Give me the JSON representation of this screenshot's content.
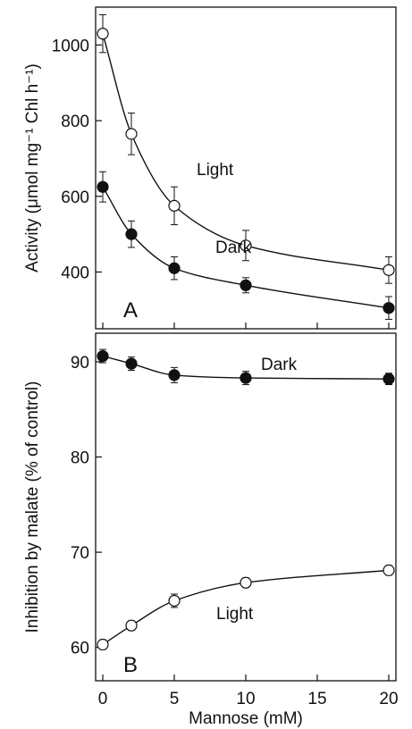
{
  "chart_data": [
    {
      "type": "line",
      "panel_label": "A",
      "ylabel": "Activity (μmol mg⁻¹ Chl h⁻¹)",
      "xlim": [
        -0.5,
        20.5
      ],
      "ylim": [
        250,
        1100
      ],
      "yticks": [
        400,
        600,
        800,
        1000
      ],
      "series": [
        {
          "name": "Light",
          "marker": "open-circle",
          "x": [
            0,
            2,
            5,
            10,
            20
          ],
          "y": [
            1030,
            765,
            575,
            470,
            405
          ],
          "error": [
            50,
            55,
            50,
            40,
            35
          ]
        },
        {
          "name": "Dark",
          "marker": "filled-circle",
          "x": [
            0,
            2,
            5,
            10,
            20
          ],
          "y": [
            625,
            500,
            410,
            365,
            305
          ],
          "error": [
            40,
            35,
            30,
            20,
            30
          ]
        }
      ]
    },
    {
      "type": "line",
      "panel_label": "B",
      "ylabel": "Inhibition by malate (% of control)",
      "xlabel": "Mannose (mM)",
      "xlim": [
        -0.5,
        20.5
      ],
      "xticks": [
        0,
        5,
        10,
        15,
        20
      ],
      "ylim": [
        56.5,
        93
      ],
      "yticks": [
        60,
        70,
        80,
        90
      ],
      "series": [
        {
          "name": "Dark",
          "marker": "filled-circle",
          "x": [
            0,
            2,
            5,
            10,
            20
          ],
          "y": [
            90.6,
            89.8,
            88.6,
            88.3,
            88.2
          ],
          "error": [
            0.7,
            0.7,
            0.8,
            0.7,
            0.6
          ]
        },
        {
          "name": "Light",
          "marker": "open-circle",
          "x": [
            0,
            2,
            5,
            10,
            20
          ],
          "y": [
            60.3,
            62.3,
            64.9,
            66.8,
            68.1
          ],
          "error": [
            0.5,
            0.5,
            0.7,
            0.5,
            0.5
          ]
        }
      ]
    }
  ]
}
